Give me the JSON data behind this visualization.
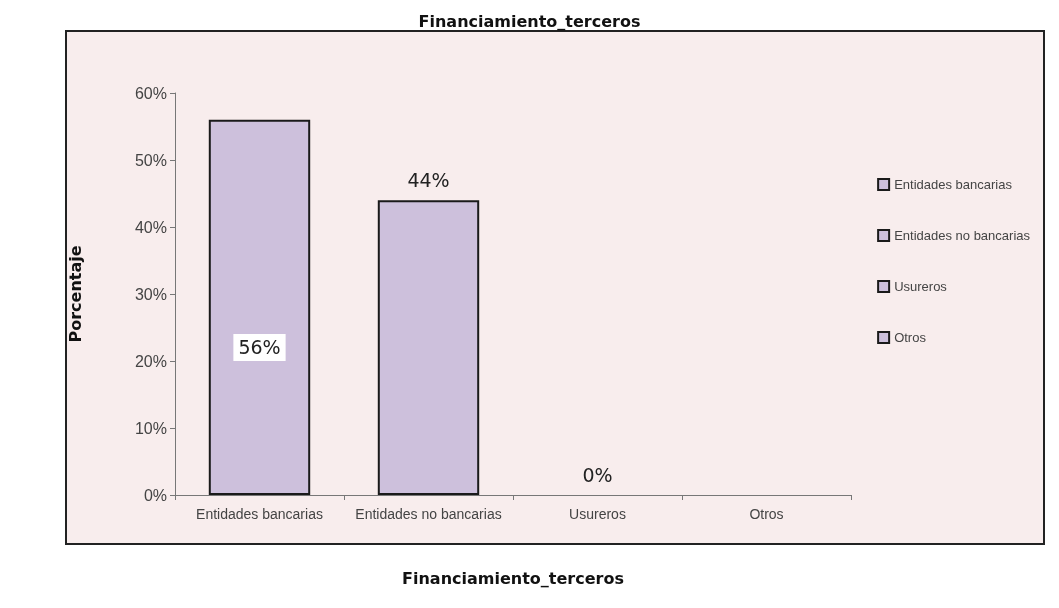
{
  "chart_data": {
    "type": "bar",
    "title": "Financiamiento_terceros",
    "xlabel": "Financiamiento_terceros",
    "ylabel": "Porcentaje",
    "categories": [
      "Entidades bancarias",
      "Entidades no bancarias",
      "Usureros",
      "Otros"
    ],
    "series": [
      {
        "name": "Entidades bancarias",
        "color": "#cdc0dc",
        "values": [
          56,
          null,
          null,
          null
        ],
        "value_labels": [
          "56%",
          null,
          null,
          null
        ]
      },
      {
        "name": "Entidades no bancarias",
        "color": "#cdc0dc",
        "values": [
          null,
          44,
          null,
          null
        ],
        "value_labels": [
          null,
          "44%",
          null,
          null
        ]
      },
      {
        "name": "Usureros",
        "color": "#cdc0dc",
        "values": [
          null,
          null,
          0,
          null
        ],
        "value_labels": [
          null,
          null,
          "0%",
          null
        ]
      },
      {
        "name": "Otros",
        "color": "#cdc0dc",
        "values": [
          null,
          null,
          null,
          null
        ]
      }
    ],
    "stacked": true,
    "ylim": [
      0,
      60
    ],
    "yticks": [
      {
        "value": 0,
        "label": "0%"
      },
      {
        "value": 10,
        "label": "10%"
      },
      {
        "value": 20,
        "label": "20%"
      },
      {
        "value": 30,
        "label": "30%"
      },
      {
        "value": 40,
        "label": "40%"
      },
      {
        "value": 50,
        "label": "50%"
      },
      {
        "value": 60,
        "label": "60%"
      }
    ],
    "grid": false,
    "legend": "right"
  }
}
